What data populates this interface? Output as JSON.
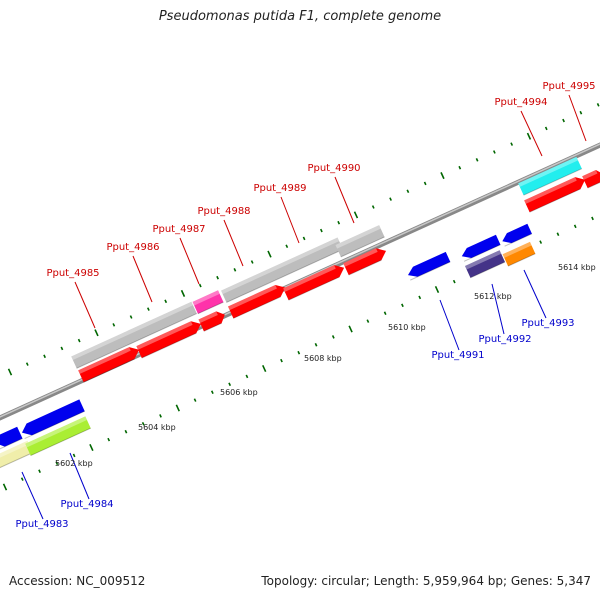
{
  "title": "Pseudomonas putida F1, complete genome",
  "footer": {
    "accession": "Accession: NC_009512",
    "summary": "Topology: circular; Length: 5,959,964 bp; Genes: 5,347"
  },
  "tick_labels": [
    "5602 kbp",
    "5604 kbp",
    "5606 kbp",
    "5608 kbp",
    "5610 kbp",
    "5612 kbp",
    "5614 kbp"
  ],
  "genes_top": [
    "Pput_4985",
    "Pput_4986",
    "Pput_4987",
    "Pput_4988",
    "Pput_4989",
    "Pput_4990",
    "Pput_4994",
    "Pput_4995"
  ],
  "genes_bottom": [
    "Pput_4983",
    "Pput_4984",
    "Pput_4991",
    "Pput_4992",
    "Pput_4993"
  ],
  "colors": {
    "top_label": "#cc0000",
    "bottom_label": "#0000cc",
    "red_gene": "#ff0000",
    "blue_gene": "#0000ee",
    "gray_gene": "#bdbdbd",
    "tick_mark": "#006600"
  }
}
